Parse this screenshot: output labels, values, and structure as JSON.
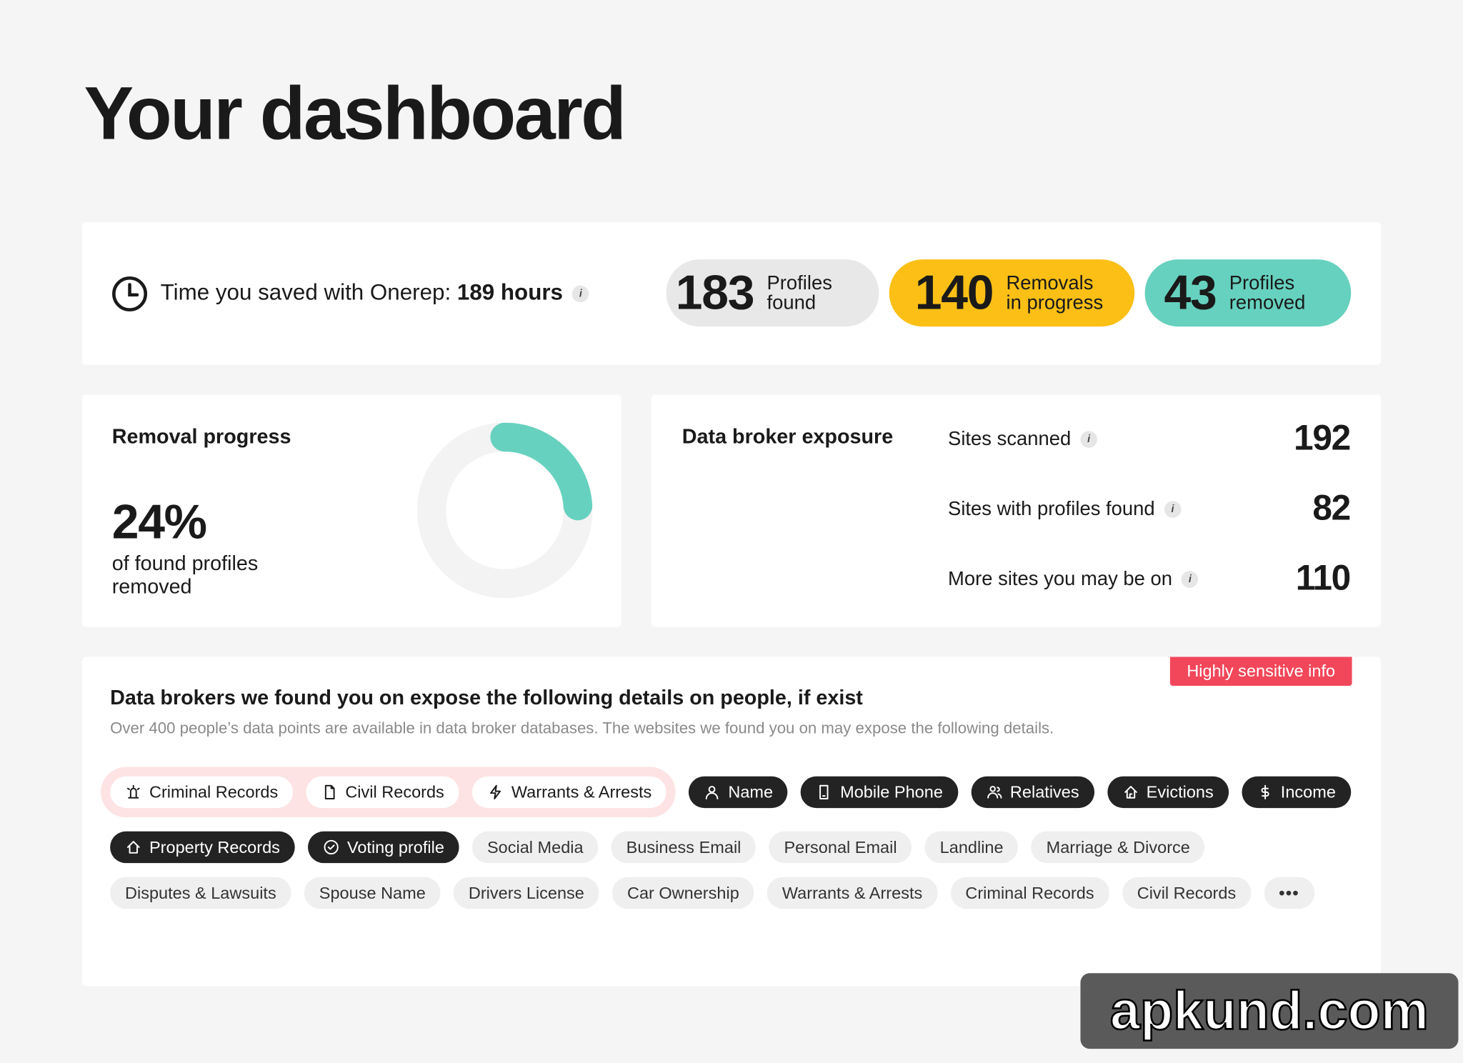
{
  "header": {
    "title": "Your dashboard"
  },
  "time_saved": {
    "label": "Time you saved with Onerep:",
    "value": "189 hours"
  },
  "stats": [
    {
      "number": 183,
      "label": "Profiles found"
    },
    {
      "number": 140,
      "label": "Removals in progress"
    },
    {
      "number": 43,
      "label": "Profiles removed"
    }
  ],
  "removal_progress": {
    "title": "Removal progress",
    "percent": 24,
    "percent_label": "24%",
    "caption": "of found profiles removed"
  },
  "exposure": {
    "title": "Data broker exposure",
    "rows": [
      {
        "label": "Sites scanned",
        "value": 192
      },
      {
        "label": "Sites with profiles found",
        "value": 82
      },
      {
        "label": "More sites you may be on",
        "value": 110
      }
    ]
  },
  "details": {
    "badge": "Highly sensitive info",
    "title": "Data brokers we found you on expose the following details on people, if exist",
    "subtitle": "Over 400 people’s data points are available in data broker databases. The websites we found you on may expose the following details.",
    "sensitive_tags": [
      "Criminal Records",
      "Civil Records",
      "Warrants & Arrests"
    ],
    "dark_tags": [
      "Name",
      "Mobile Phone",
      "Relatives",
      "Evictions",
      "Income",
      "Property Records",
      "Voting profile"
    ],
    "tags": [
      "Social Media",
      "Business Email",
      "Personal Email",
      "Landline",
      "Marriage & Divorce",
      "Disputes & Lawsuits",
      "Spouse Name",
      "Drivers License",
      "Car Ownership",
      "Warrants & Arrests",
      "Criminal Records",
      "Civil Records"
    ],
    "more": "•••"
  },
  "watermark": "apkund.com"
}
